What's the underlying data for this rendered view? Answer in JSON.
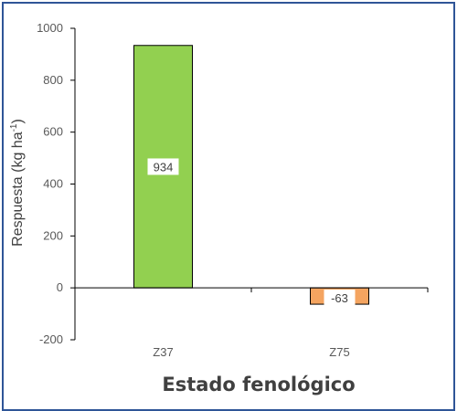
{
  "chart_data": {
    "type": "bar",
    "categories": [
      "Z37",
      "Z75"
    ],
    "values": [
      934,
      -63
    ],
    "data_labels": [
      "934",
      "-63"
    ],
    "bar_colors": [
      "#92d050",
      "#f4a460"
    ],
    "xlabel": "Estado fenológico",
    "ylabel_main": "Respuesta (kg ha",
    "ylabel_sup": "-1",
    "ylabel_close": ")",
    "ylim": [
      -200,
      1000
    ],
    "yticks": [
      -200,
      0,
      200,
      400,
      600,
      800,
      1000
    ],
    "ytick_labels": [
      "-200",
      "0",
      "200",
      "400",
      "600",
      "800",
      "1000"
    ],
    "grid": false,
    "legend": "none",
    "frame_color": "#2f5597"
  }
}
